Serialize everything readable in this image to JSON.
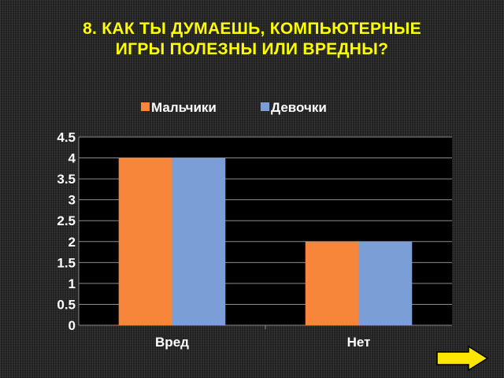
{
  "title": {
    "line1": "8. КАК ТЫ ДУМАЕШЬ, КОМПЬЮТЕРНЫЕ",
    "line2": "ИГРЫ ПОЛЕЗНЫ ИЛИ ВРЕДНЫ?"
  },
  "colors": {
    "title": "#FFFF00",
    "series1": "#F7853A",
    "series2": "#7B9ED7",
    "plot_background": "#000000",
    "gridline": "#8C8C8C",
    "next_arrow": "#FFE600"
  },
  "navigation": {
    "next_icon": "right-arrow-icon"
  },
  "chart_data": {
    "type": "bar",
    "categories": [
      "Вред",
      "Нет"
    ],
    "series": [
      {
        "name": "Мальчики",
        "values": [
          4,
          2
        ]
      },
      {
        "name": "Девочки",
        "values": [
          4,
          2
        ]
      }
    ],
    "ylim": [
      0,
      4.5
    ],
    "yticks": [
      "0",
      "0.5",
      "1",
      "1.5",
      "2",
      "2.5",
      "3",
      "3.5",
      "4",
      "4.5"
    ],
    "grid": true,
    "legend_position": "top"
  }
}
